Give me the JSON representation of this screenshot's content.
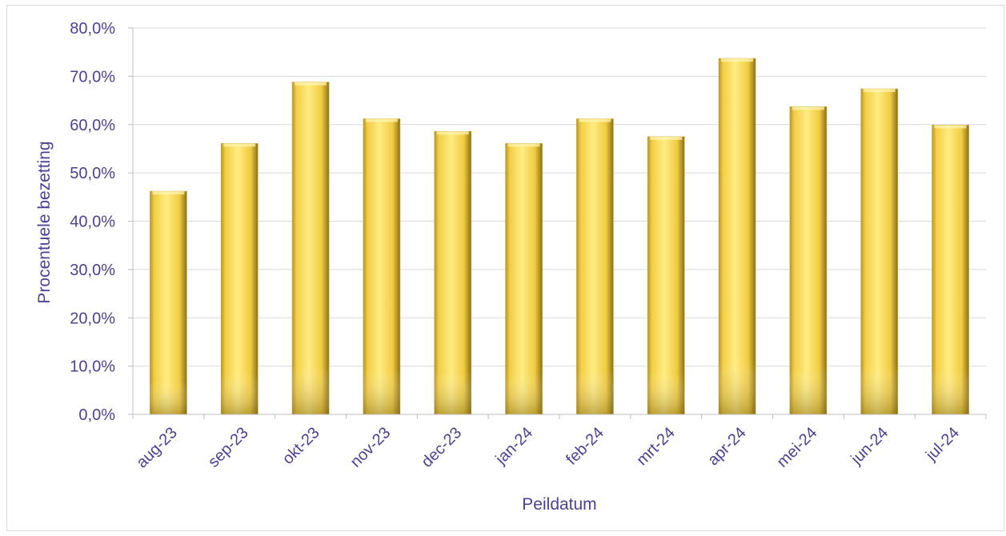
{
  "chart_data": {
    "type": "bar",
    "title": "",
    "xlabel": "Peildatum",
    "ylabel": "Procentuele bezetting",
    "categories": [
      "aug-23",
      "sep-23",
      "okt-23",
      "nov-23",
      "dec-23",
      "jan-24",
      "feb-24",
      "mrt-24",
      "apr-24",
      "mei-24",
      "jun-24",
      "jul-24"
    ],
    "values": [
      46.2,
      56.1,
      68.8,
      61.2,
      58.6,
      56.1,
      61.2,
      57.5,
      73.7,
      63.7,
      67.4,
      59.9
    ],
    "ylim": [
      0,
      80
    ],
    "yticks": [
      0,
      10,
      20,
      30,
      40,
      50,
      60,
      70,
      80
    ],
    "ytick_labels": [
      "0,0%",
      "10,0%",
      "20,0%",
      "30,0%",
      "40,0%",
      "50,0%",
      "60,0%",
      "70,0%",
      "80,0%"
    ],
    "grid": true,
    "legend": "none",
    "colors": {
      "bar_light": "#ffe97a",
      "bar_mid": "#f2cf45",
      "bar_dark": "#9a7d1c",
      "text": "#4f3f95",
      "grid": "#d9d9d9",
      "axis": "#bfbfbf"
    }
  }
}
